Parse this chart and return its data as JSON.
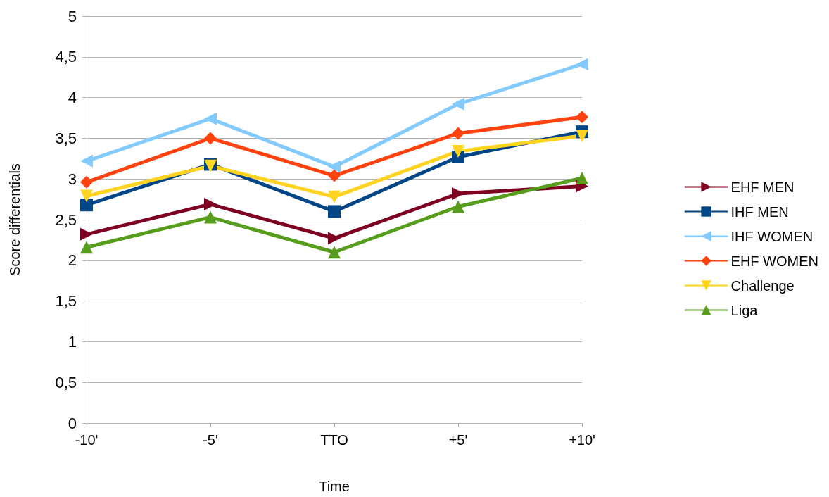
{
  "chart_data": {
    "type": "line",
    "xlabel": "Time",
    "ylabel": "Score differentials",
    "categories": [
      "-10'",
      "-5'",
      "TTO",
      "+5'",
      "+10'"
    ],
    "series": [
      {
        "name": "EHF MEN",
        "color": "#7e0021",
        "marker": "triangle",
        "values": [
          2.32,
          2.69,
          2.27,
          2.82,
          2.91
        ]
      },
      {
        "name": "IHF MEN",
        "color": "#004586",
        "marker": "square",
        "values": [
          2.68,
          3.18,
          2.6,
          3.27,
          3.58
        ]
      },
      {
        "name": "IHF WOMEN",
        "color": "#83caff",
        "marker": "triangle",
        "values": [
          3.22,
          3.74,
          3.15,
          3.92,
          4.41
        ]
      },
      {
        "name": "EHF WOMEN",
        "color": "#ff420e",
        "marker": "diamond",
        "values": [
          2.96,
          3.5,
          3.04,
          3.56,
          3.76
        ]
      },
      {
        "name": "Challenge",
        "color": "#ffd320",
        "marker": "triangle",
        "values": [
          2.79,
          3.16,
          2.78,
          3.34,
          3.53
        ]
      },
      {
        "name": "Liga",
        "color": "#579d1c",
        "marker": "triangle",
        "values": [
          2.16,
          2.53,
          2.1,
          2.66,
          3.01
        ]
      }
    ],
    "ylim": [
      0,
      5
    ],
    "yticks": [
      0,
      {
        "value": 0.5,
        "label": "0,5"
      },
      1,
      {
        "value": 1.5,
        "label": "1,5"
      },
      2,
      {
        "value": 2.5,
        "label": "2,5"
      },
      3,
      {
        "value": 3.5,
        "label": "3,5"
      },
      4,
      {
        "value": 4.5,
        "label": "4,5"
      },
      5
    ],
    "grid": "y",
    "legend": "right",
    "line_style": "solid"
  }
}
